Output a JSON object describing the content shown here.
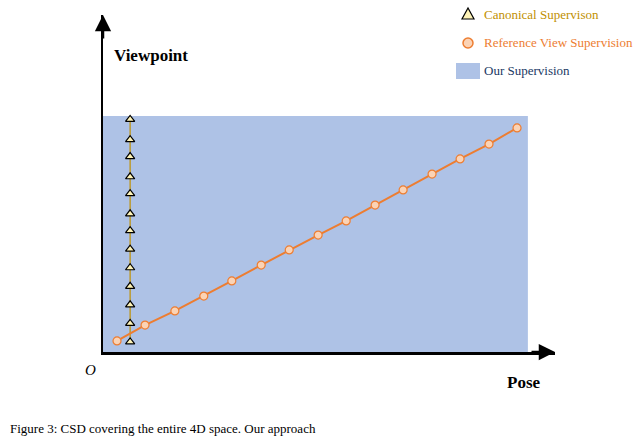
{
  "chart_data": {
    "type": "scatter",
    "x_label": "Pose",
    "y_label": "Viewpoint",
    "origin_label": "O",
    "caption": "Figure 3: CSD covering the entire 4D space. Our approach",
    "xlim": [
      0,
      100
    ],
    "ylim": [
      0,
      100
    ],
    "tick_labels": false,
    "grid": false,
    "region": {
      "name": "Our Supervision",
      "color": "#aec2e6",
      "x": [
        0,
        94
      ],
      "y": [
        0,
        70
      ]
    },
    "series": [
      {
        "name": "Canonical Supervison",
        "color": "#bf9000",
        "marker": "triangle",
        "line_style": "solid",
        "x": [
          6,
          6,
          6,
          6,
          6,
          6,
          6,
          6,
          6,
          6,
          6,
          6,
          6
        ],
        "y": [
          3,
          8.5,
          14,
          19.5,
          25,
          30.5,
          36,
          41,
          47,
          52,
          58,
          63,
          69
        ]
      },
      {
        "name": "Reference View Supervision",
        "color": "#ed7d31",
        "marker": "circle",
        "line_style": "solid",
        "x": [
          3.1,
          9.3,
          15.9,
          22.3,
          28.5,
          35.0,
          41.2,
          47.6,
          53.8,
          60.2,
          66.4,
          72.8,
          79.0,
          85.4,
          91.6
        ],
        "y": [
          3.3,
          8.0,
          12.2,
          16.6,
          21.1,
          25.8,
          30.3,
          34.7,
          38.9,
          43.6,
          48.1,
          52.8,
          57.3,
          61.7,
          66.5
        ]
      }
    ]
  }
}
